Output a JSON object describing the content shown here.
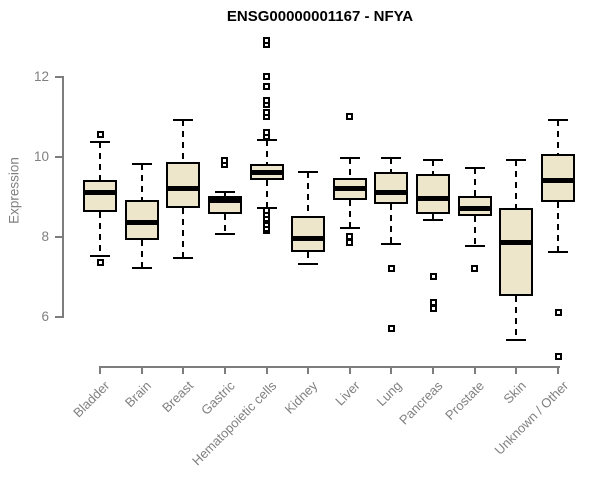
{
  "title": "ENSG00000001167 - NFYA",
  "y_axis": {
    "label": "Expression"
  },
  "chart_data": {
    "type": "boxplot",
    "title": "ENSG00000001167 - NFYA",
    "xlabel": "",
    "ylabel": "Expression",
    "y_ticks": [
      6,
      8,
      10,
      12
    ],
    "ylim": [
      5.0,
      13.0
    ],
    "grid": false,
    "legend": "none",
    "categories": [
      "Bladder",
      "Brain",
      "Breast",
      "Gastric",
      "Hematopoietic cells",
      "Kidney",
      "Liver",
      "Lung",
      "Pancreas",
      "Prostate",
      "Skin",
      "Unknown / Other"
    ],
    "series": [
      {
        "name": "Bladder",
        "whisker_low": 7.5,
        "q1": 8.6,
        "median": 9.1,
        "q3": 9.4,
        "whisker_high": 10.35,
        "outliers": [
          7.35,
          10.55
        ]
      },
      {
        "name": "Brain",
        "whisker_low": 7.2,
        "q1": 7.9,
        "median": 8.35,
        "q3": 8.9,
        "whisker_high": 9.8,
        "outliers": []
      },
      {
        "name": "Breast",
        "whisker_low": 7.45,
        "q1": 8.7,
        "median": 9.2,
        "q3": 9.85,
        "whisker_high": 10.9,
        "outliers": []
      },
      {
        "name": "Gastric",
        "whisker_low": 8.05,
        "q1": 8.55,
        "median": 8.9,
        "q3": 9.0,
        "whisker_high": 9.1,
        "outliers": [
          9.8,
          9.9
        ]
      },
      {
        "name": "Hematopoietic cells",
        "whisker_low": 8.7,
        "q1": 9.4,
        "median": 9.6,
        "q3": 9.8,
        "whisker_high": 10.4,
        "outliers": [
          8.15,
          8.2,
          8.3,
          8.4,
          8.45,
          8.55,
          8.65,
          10.5,
          10.6,
          11.0,
          11.1,
          11.3,
          11.4,
          11.75,
          12.0,
          12.8,
          12.9
        ]
      },
      {
        "name": "Kidney",
        "whisker_low": 7.3,
        "q1": 7.6,
        "median": 7.95,
        "q3": 8.5,
        "whisker_high": 9.6,
        "outliers": []
      },
      {
        "name": "Liver",
        "whisker_low": 8.2,
        "q1": 8.9,
        "median": 9.2,
        "q3": 9.45,
        "whisker_high": 9.95,
        "outliers": [
          7.85,
          8.0,
          11.0
        ]
      },
      {
        "name": "Lung",
        "whisker_low": 7.8,
        "q1": 8.8,
        "median": 9.1,
        "q3": 9.6,
        "whisker_high": 9.95,
        "outliers": [
          5.7,
          7.2
        ]
      },
      {
        "name": "Pancreas",
        "whisker_low": 8.4,
        "q1": 8.55,
        "median": 8.95,
        "q3": 9.55,
        "whisker_high": 9.9,
        "outliers": [
          6.2,
          6.35,
          7.0
        ]
      },
      {
        "name": "Prostate",
        "whisker_low": 7.75,
        "q1": 8.5,
        "median": 8.7,
        "q3": 9.0,
        "whisker_high": 9.7,
        "outliers": [
          7.2
        ]
      },
      {
        "name": "Skin",
        "whisker_low": 5.4,
        "q1": 6.5,
        "median": 7.85,
        "q3": 8.7,
        "whisker_high": 9.9,
        "outliers": []
      },
      {
        "name": "Unknown / Other",
        "whisker_low": 7.6,
        "q1": 8.85,
        "median": 9.4,
        "q3": 10.05,
        "whisker_high": 10.9,
        "outliers": [
          5.0,
          6.1
        ]
      }
    ],
    "colors": {
      "box_fill": "#EDE6CA",
      "box_border": "#000000",
      "median": "#000000",
      "axis": "#7d7d7d",
      "tick_text": "#808080",
      "title_text": "#000000"
    }
  }
}
